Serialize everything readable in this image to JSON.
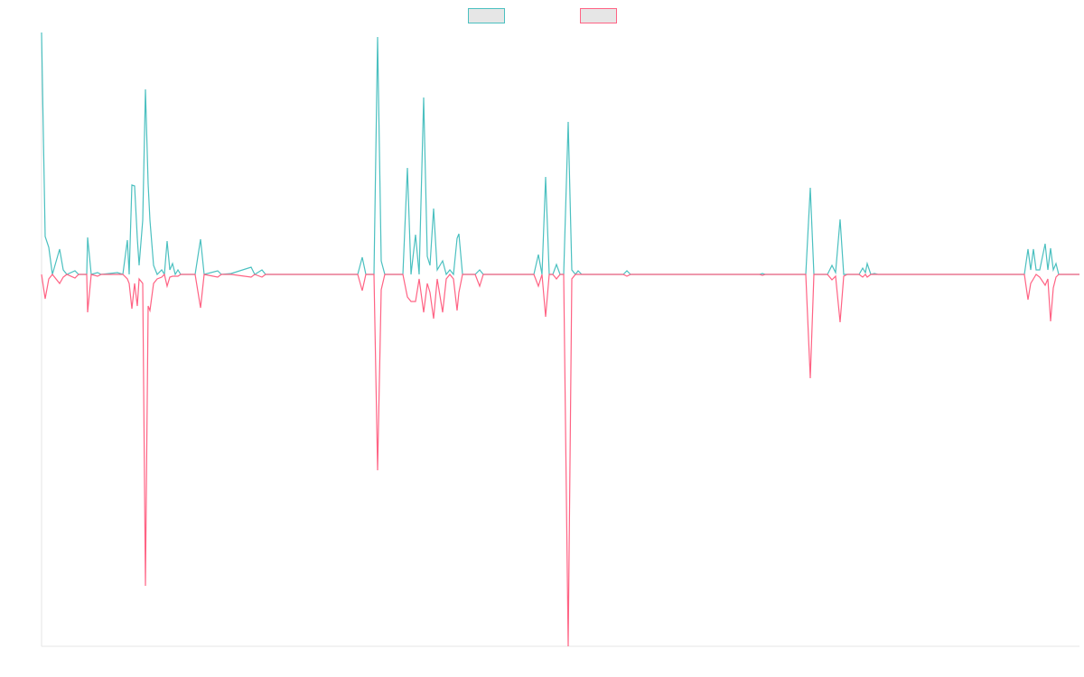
{
  "chart_data": {
    "type": "line",
    "grid": false,
    "xlim": [
      0,
      1149
    ],
    "ylim": [
      -412,
      268
    ],
    "x": [
      0,
      4,
      8,
      12,
      20,
      24,
      28,
      37,
      41,
      50,
      51,
      55,
      62,
      66,
      84,
      90,
      95,
      97,
      100,
      103,
      106,
      108,
      112,
      115,
      118,
      120,
      124,
      128,
      133,
      136,
      139,
      142,
      145,
      148,
      151,
      154,
      170,
      176,
      180,
      195,
      199,
      210,
      232,
      236,
      244,
      248,
      350,
      355,
      359,
      368,
      372,
      376,
      380,
      400,
      405,
      409,
      414,
      418,
      423,
      427,
      430,
      434,
      438,
      444,
      448,
      452,
      456,
      460,
      462,
      466,
      480,
      485,
      489,
      545,
      550,
      554,
      558,
      562,
      566,
      570,
      574,
      578,
      583,
      587,
      591,
      594,
      598,
      644,
      648,
      652,
      795,
      798,
      801,
      846,
      851,
      855,
      870,
      875,
      879,
      884,
      888,
      892,
      905,
      909,
      912,
      914,
      918,
      922,
      926,
      1088,
      1092,
      1095,
      1098,
      1101,
      1105,
      1111,
      1114,
      1117,
      1120,
      1123,
      1126,
      1149
    ],
    "series": [
      {
        "color": "#4bc0c0",
        "values": [
          268,
          42,
          30,
          0,
          28,
          5,
          0,
          4,
          0,
          0,
          41,
          0,
          2,
          0,
          2,
          0,
          38,
          0,
          99,
          98,
          40,
          10,
          60,
          205,
          100,
          60,
          10,
          0,
          5,
          0,
          37,
          5,
          12,
          0,
          5,
          0,
          0,
          39,
          0,
          4,
          0,
          1,
          8,
          0,
          5,
          0,
          0,
          19,
          0,
          0,
          263,
          15,
          0,
          0,
          118,
          0,
          44,
          0,
          196,
          20,
          10,
          73,
          5,
          15,
          0,
          5,
          0,
          40,
          45,
          0,
          0,
          5,
          0,
          0,
          22,
          0,
          108,
          0,
          0,
          11,
          0,
          0,
          169,
          5,
          0,
          4,
          0,
          0,
          4,
          0,
          0,
          1,
          0,
          0,
          96,
          0,
          0,
          10,
          2,
          61,
          0,
          0,
          0,
          7,
          2,
          12,
          0,
          1,
          0,
          0,
          28,
          5,
          28,
          5,
          5,
          34,
          5,
          29,
          5,
          12,
          0,
          0
        ]
      },
      {
        "color": "#ff6384",
        "values": [
          0,
          -27,
          -5,
          0,
          -10,
          -3,
          0,
          -4,
          0,
          0,
          -42,
          0,
          -2,
          0,
          0,
          0,
          -5,
          -10,
          -38,
          -10,
          -35,
          -5,
          -10,
          -345,
          -35,
          -40,
          -10,
          -5,
          -3,
          0,
          -13,
          -3,
          -2,
          -2,
          -2,
          0,
          0,
          -37,
          0,
          -3,
          0,
          0,
          -3,
          0,
          -3,
          0,
          0,
          -18,
          0,
          0,
          -217,
          -17,
          0,
          0,
          -25,
          -30,
          -30,
          -5,
          -42,
          -10,
          -20,
          -49,
          -5,
          -42,
          -5,
          0,
          -5,
          -40,
          -20,
          0,
          0,
          -13,
          0,
          0,
          -13,
          0,
          -47,
          0,
          0,
          -5,
          0,
          0,
          -412,
          -5,
          0,
          0,
          0,
          0,
          -2,
          0,
          0,
          -1,
          0,
          0,
          -115,
          0,
          0,
          -6,
          -2,
          -53,
          -2,
          0,
          0,
          -3,
          0,
          -3,
          0,
          0,
          0,
          0,
          -28,
          -10,
          -5,
          0,
          -3,
          -12,
          -5,
          -52,
          -15,
          -3,
          0,
          0
        ]
      }
    ]
  }
}
